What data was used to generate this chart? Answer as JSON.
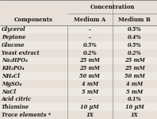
{
  "title": "Concentration",
  "rows": [
    [
      "Glycerol",
      "-",
      "0.5%"
    ],
    [
      "Peptone",
      "-",
      "0.4%"
    ],
    [
      "Glucose",
      "0.5%",
      "0.5%"
    ],
    [
      "Yeast extract",
      "0.2%",
      "0.2%"
    ],
    [
      "Na₂HPO₄",
      "25 mM",
      "25 mM"
    ],
    [
      "KH₂PO₄",
      "25 mM",
      "25 mM"
    ],
    [
      "NH₄Cl",
      "50 mM",
      "50 mM"
    ],
    [
      "MgSO₄",
      "4 mM",
      "4 mM"
    ],
    [
      "NaCl",
      "5 mM",
      "5 mM"
    ],
    [
      "Acid citric",
      "-",
      "0.1%"
    ],
    [
      "Thiamine",
      "10 μM",
      "10 μM"
    ],
    [
      "Trace elements *",
      "1X",
      "1X"
    ]
  ],
  "bg_color": "#e8e0d8",
  "header_bg": "#e8e0d8",
  "row_bg_light": "#ede8e2",
  "row_bg_dark": "#d8d0c8",
  "line_color": "#888888",
  "text_color": "#1a1a1a",
  "font_size": 4.8,
  "header_font_size": 5.0,
  "col_split1": 0.43,
  "col_split2": 0.715
}
